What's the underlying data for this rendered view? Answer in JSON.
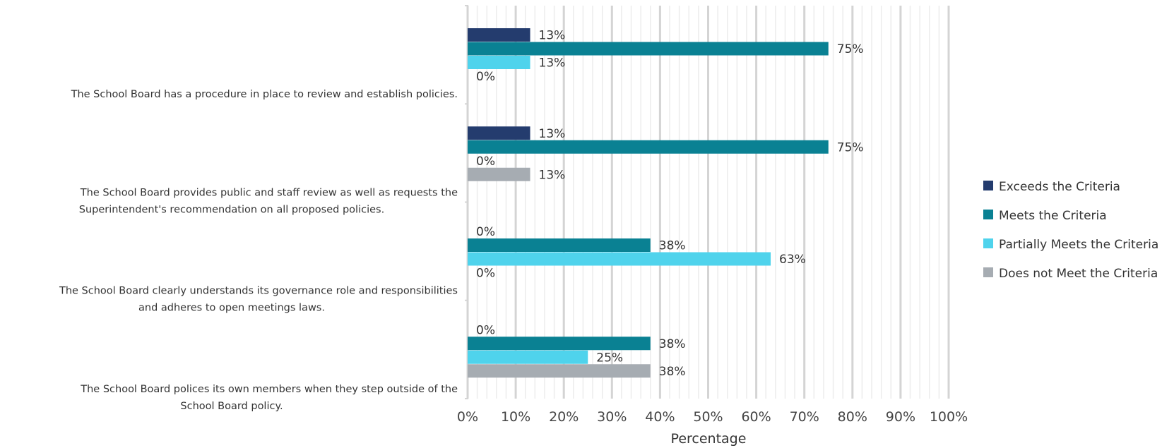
{
  "chart_data": {
    "type": "bar",
    "orientation": "horizontal",
    "categories": [
      [
        "The School Board has a procedure in place to review and establish policies."
      ],
      [
        "The School Board provides public and staff review as well as requests the",
        "Superintendent's recommendation on all proposed policies."
      ],
      [
        "The School Board clearly understands its governance role and responsibilities",
        "and adheres to open meetings laws."
      ],
      [
        "The School Board polices its own members when they step outside of the",
        "School Board policy."
      ]
    ],
    "series": [
      {
        "name": "Exceeds the Criteria",
        "color": "#243c6e",
        "values": [
          13,
          13,
          0,
          0
        ],
        "labels": [
          "13%",
          "13%",
          "0%",
          "0%"
        ]
      },
      {
        "name": "Meets the Criteria",
        "color": "#0a8193",
        "values": [
          75,
          75,
          38,
          38
        ],
        "labels": [
          "75%",
          "75%",
          "38%",
          "38%"
        ]
      },
      {
        "name": "Partially Meets the Criteria",
        "color": "#4fd3ec",
        "values": [
          13,
          0,
          63,
          25
        ],
        "labels": [
          "13%",
          "0%",
          "63%",
          "25%"
        ]
      },
      {
        "name": "Does not Meet the Criteria",
        "color": "#a6acb2",
        "values": [
          0,
          13,
          0,
          38
        ],
        "labels": [
          "0%",
          "13%",
          "0%",
          "38%"
        ]
      }
    ],
    "xlim": [
      0,
      100
    ],
    "xticks": [
      0,
      10,
      20,
      30,
      40,
      50,
      60,
      70,
      80,
      90,
      100
    ],
    "xtick_labels": [
      "0%",
      "10%",
      "20%",
      "30%",
      "40%",
      "50%",
      "60%",
      "70%",
      "80%",
      "90%",
      "100%"
    ],
    "xlabel": "Percentage",
    "ylabel": "",
    "title": "",
    "grid": true,
    "legend_position": "right"
  }
}
